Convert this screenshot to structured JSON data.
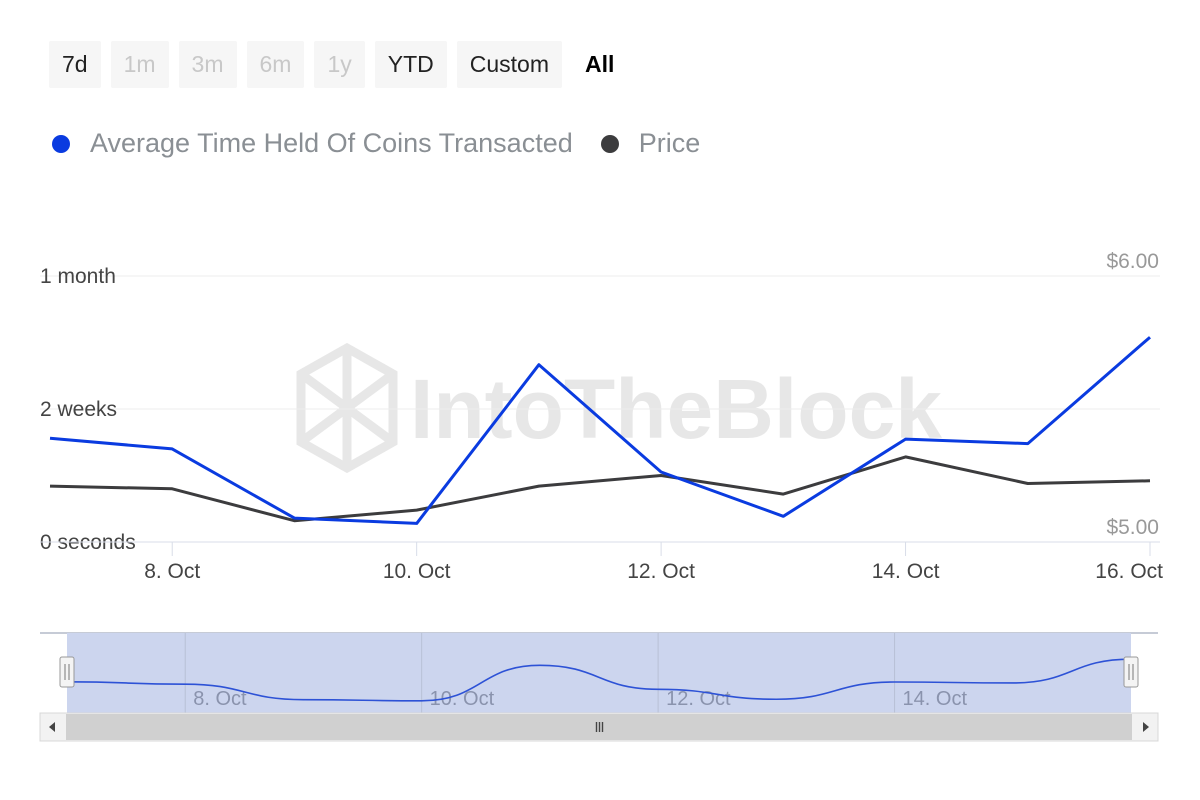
{
  "range_selector": {
    "buttons": [
      {
        "label": "7d",
        "state": "normal"
      },
      {
        "label": "1m",
        "state": "disabled"
      },
      {
        "label": "3m",
        "state": "disabled"
      },
      {
        "label": "6m",
        "state": "disabled"
      },
      {
        "label": "1y",
        "state": "disabled"
      },
      {
        "label": "YTD",
        "state": "normal"
      },
      {
        "label": "Custom",
        "state": "normal"
      },
      {
        "label": "All",
        "state": "active"
      }
    ]
  },
  "watermark": "IntoTheBlock",
  "colors": {
    "series_blue": "#0a3be0",
    "series_dark": "#3c3c3e",
    "navigator_fill": "#ccd5ee",
    "navigator_line": "#2d52d6"
  },
  "chart_data": {
    "type": "line",
    "x": [
      "7. Oct",
      "8. Oct",
      "9. Oct",
      "10. Oct",
      "11. Oct",
      "12. Oct",
      "13. Oct",
      "14. Oct",
      "15. Oct",
      "16. Oct"
    ],
    "xticks": [
      "8. Oct",
      "10. Oct",
      "12. Oct",
      "14. Oct",
      "16. Oct"
    ],
    "series": [
      {
        "name": "Average Time Held Of Coins Transacted",
        "axis": "left",
        "unit": "days",
        "color": "#0a3be0",
        "values": [
          11.7,
          10.5,
          2.7,
          2.1,
          20.0,
          7.9,
          2.9,
          11.6,
          11.1,
          23.1
        ]
      },
      {
        "name": "Price",
        "axis": "right",
        "unit": "USD",
        "color": "#3c3c3e",
        "values": [
          5.21,
          5.2,
          5.08,
          5.12,
          5.21,
          5.25,
          5.18,
          5.32,
          5.22,
          5.23
        ]
      }
    ],
    "y_left": {
      "min": 0,
      "max": 30,
      "ticks": [
        {
          "value": 0,
          "label": "0 seconds"
        },
        {
          "value": 15,
          "label": "2 weeks"
        },
        {
          "value": 30,
          "label": "1 month"
        }
      ]
    },
    "y_right": {
      "min": 5.0,
      "max": 6.0,
      "ticks": [
        {
          "value": 5.0,
          "label": "$5.00"
        },
        {
          "value": 6.0,
          "label": "$6.00"
        }
      ]
    },
    "grid": true,
    "legend_position": "top-left",
    "navigator": {
      "xticks": [
        "8. Oct",
        "10. Oct",
        "12. Oct",
        "14. Oct"
      ],
      "selection": "full range"
    }
  }
}
